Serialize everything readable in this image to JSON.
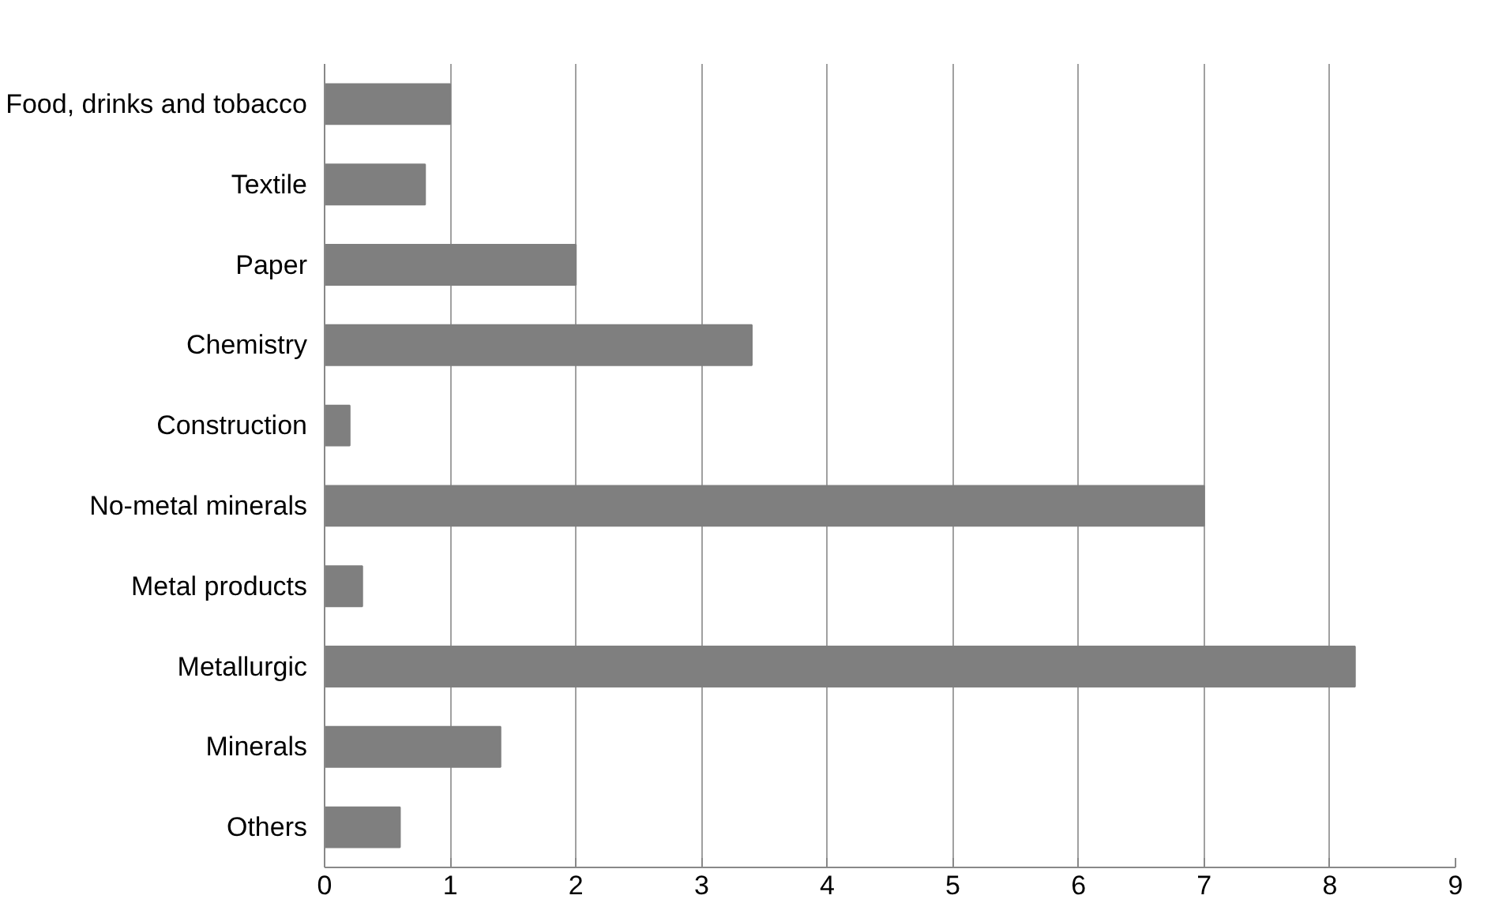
{
  "chart_data": {
    "type": "bar",
    "orientation": "horizontal",
    "categories": [
      "Food, drinks and tobacco",
      "Textile",
      "Paper",
      "Chemistry",
      "Construction",
      "No-metal minerals",
      "Metal products",
      "Metallurgic",
      "Minerals",
      "Others"
    ],
    "values": [
      1.0,
      0.8,
      2.0,
      3.4,
      0.2,
      7.0,
      0.3,
      8.2,
      1.4,
      0.6
    ],
    "color": "#7f7f7f",
    "xlim": [
      0,
      9
    ],
    "xticks": [
      0,
      1,
      2,
      3,
      4,
      5,
      6,
      7,
      8,
      9
    ],
    "grid": "x"
  }
}
